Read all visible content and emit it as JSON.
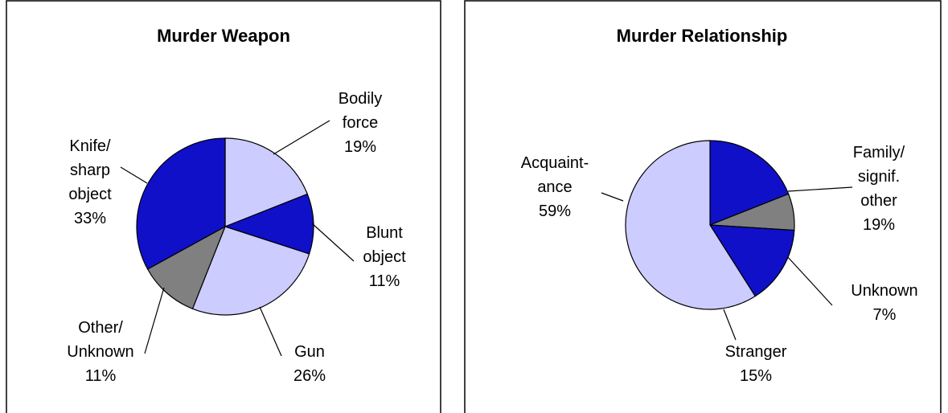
{
  "chart_data": [
    {
      "type": "pie",
      "title": "Murder Weapon",
      "categories": [
        "Bodily force",
        "Blunt object",
        "Gun",
        "Other/ Unknown",
        "Knife/ sharp object"
      ],
      "values": [
        19,
        11,
        26,
        11,
        33
      ],
      "value_labels": [
        "19%",
        "11%",
        "26%",
        "11%",
        "33%"
      ],
      "colors": [
        "#ccccff",
        "#1010c8",
        "#ccccff",
        "#808080",
        "#1010c8"
      ]
    },
    {
      "type": "pie",
      "title": "Murder Relationship",
      "categories": [
        "Family/ signif. other",
        "Unknown",
        "Stranger",
        "Acquaint-ance"
      ],
      "values": [
        19,
        7,
        15,
        59
      ],
      "value_labels": [
        "19%",
        "7%",
        "15%",
        "59%"
      ],
      "colors": [
        "#1010c8",
        "#808080",
        "#1010c8",
        "#ccccff"
      ]
    }
  ]
}
